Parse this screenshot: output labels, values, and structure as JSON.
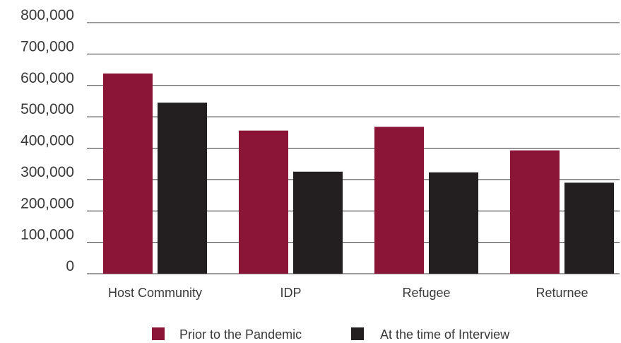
{
  "chart_data": {
    "type": "bar",
    "title": "",
    "xlabel": "",
    "ylabel": "",
    "categories": [
      "Host Community",
      "IDP",
      "Refugee",
      "Returnee"
    ],
    "series": [
      {
        "name": "Prior to the Pandemic",
        "color": "#8b1537",
        "values": [
          638000,
          456000,
          468000,
          393000
        ]
      },
      {
        "name": "At the time of Interview",
        "color": "#231f20",
        "values": [
          545000,
          325000,
          323000,
          290000
        ]
      }
    ],
    "ylim": [
      0,
      800000
    ],
    "yticks": [
      "0",
      "100,000",
      "200,000",
      "300,000",
      "400,000",
      "500,000",
      "600,000",
      "700,000",
      "800,000"
    ],
    "grid": true,
    "legend_position": "bottom-center"
  }
}
